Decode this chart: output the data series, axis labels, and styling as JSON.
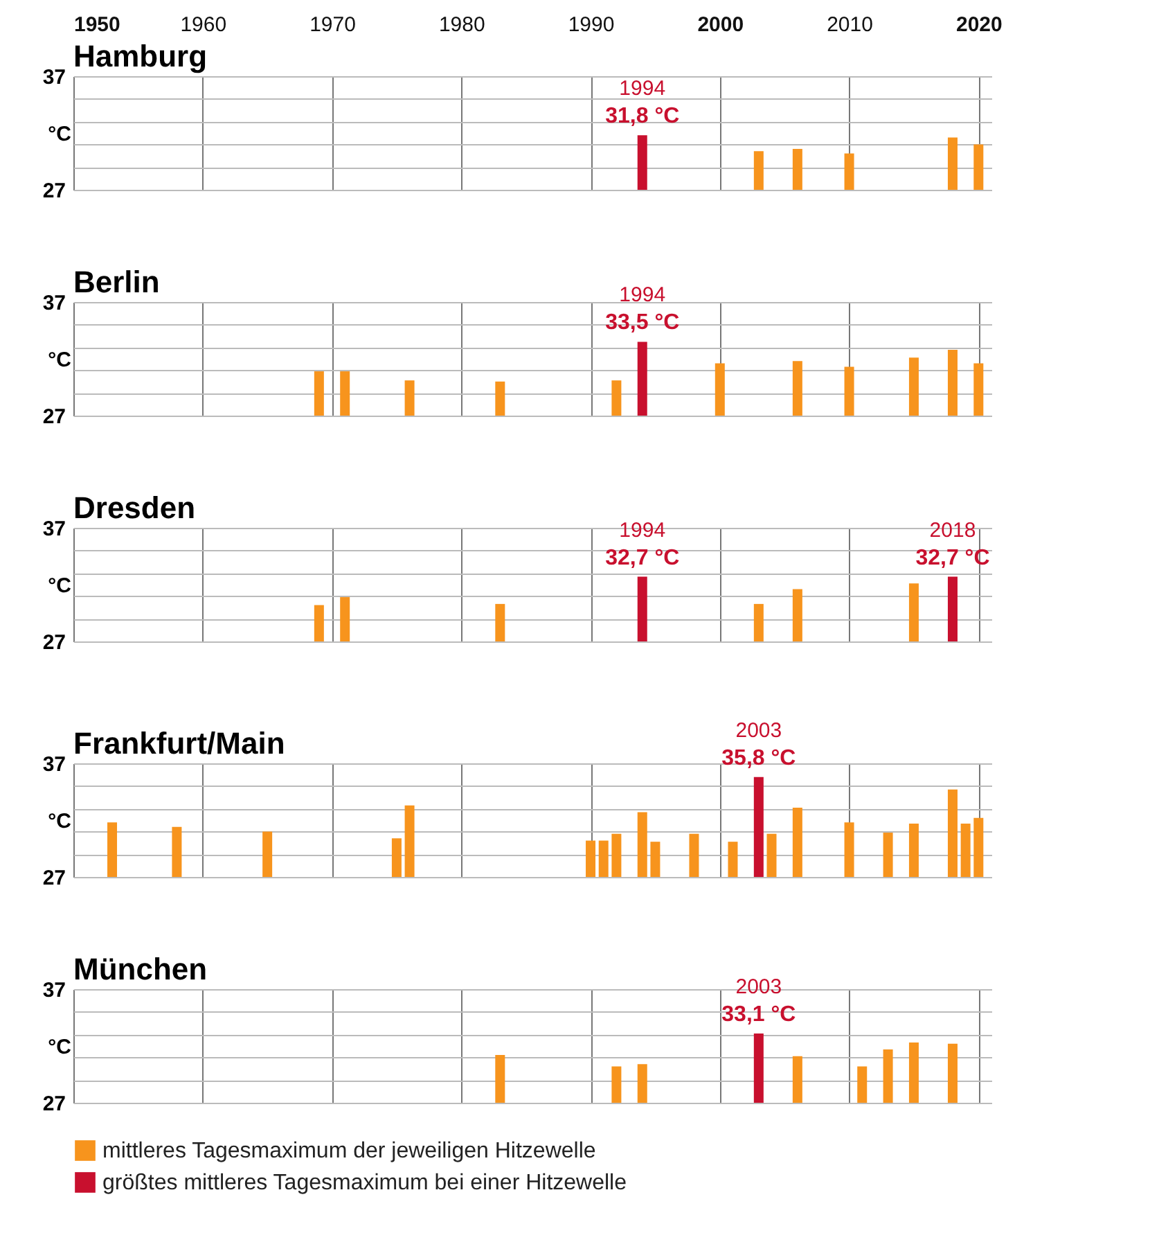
{
  "chart_data": [
    {
      "type": "bar",
      "title": "Hamburg",
      "xlim": [
        1950,
        2021
      ],
      "xticks": [
        1950,
        1960,
        1970,
        1980,
        1990,
        2000,
        2010,
        2020
      ],
      "ylim": [
        27,
        37
      ],
      "yticks": [
        27,
        {
          "value": 29,
          "label": null
        },
        {
          "value": 31,
          "label": null
        },
        {
          "value": 33,
          "label": null
        },
        {
          "value": 35,
          "label": null
        },
        37
      ],
      "ylabel": "°C",
      "grid": true,
      "series": [
        {
          "color": "#f7941d",
          "x": [
            2003,
            2006,
            2010,
            2018,
            2020
          ],
          "values": [
            30.4,
            30.6,
            30.2,
            31.6,
            31.0
          ]
        },
        {
          "color": "#c8102e",
          "x": [
            1994
          ],
          "values": [
            31.8
          ],
          "value_labels": [
            "31,8 °C"
          ]
        }
      ],
      "annotations": [
        {
          "text": "1994",
          "x": 1994,
          "y": 31.8
        }
      ]
    },
    {
      "type": "bar",
      "title": "Berlin",
      "xlim": [
        1950,
        2021
      ],
      "xticks": [
        1950,
        1960,
        1970,
        1980,
        1990,
        2000,
        2010,
        2020
      ],
      "ylim": [
        27,
        37
      ],
      "yticks": [
        27,
        {
          "value": 29,
          "label": null
        },
        {
          "value": 31,
          "label": null
        },
        {
          "value": 33,
          "label": null
        },
        {
          "value": 35,
          "label": null
        },
        37
      ],
      "ylabel": "°C",
      "grid": true,
      "tick_labels": "y",
      "series": [
        {
          "color": "#f7941d",
          "x": [
            1969,
            1971,
            1976,
            1983,
            1992,
            2000,
            2006,
            2010,
            2015,
            2018,
            2020
          ],
          "values": [
            30.9,
            30.9,
            30.1,
            30.0,
            30.1,
            31.6,
            31.8,
            31.3,
            32.1,
            32.8,
            31.6
          ]
        },
        {
          "color": "#c8102e",
          "x": [
            1994
          ],
          "values": [
            33.5
          ],
          "value_labels": [
            "33,5 °C"
          ]
        }
      ],
      "annotations": [
        {
          "text": "1994",
          "x": 1994,
          "y": 33.5
        }
      ]
    },
    {
      "type": "bar",
      "title": "Dresden",
      "xlim": [
        1950,
        2021
      ],
      "xticks": [
        1950,
        1960,
        1970,
        1980,
        1990,
        2000,
        2010,
        2020
      ],
      "ylim": [
        27,
        37
      ],
      "yticks": [
        27,
        {
          "value": 29,
          "label": null
        },
        {
          "value": 31,
          "label": null
        },
        {
          "value": 33,
          "label": null
        },
        {
          "value": 35,
          "label": null
        },
        37
      ],
      "ylabel": "°C",
      "grid": true,
      "tick_labels": "y",
      "series": [
        {
          "color": "#f7941d",
          "x": [
            1969,
            1971,
            1983,
            2003,
            2006,
            2015
          ],
          "values": [
            30.2,
            30.9,
            30.3,
            30.3,
            31.6,
            32.1
          ]
        },
        {
          "color": "#c8102e",
          "x": [
            1994,
            2018
          ],
          "values": [
            32.7,
            32.7
          ],
          "value_labels": [
            "32,7 °C",
            "32,7 °C"
          ]
        }
      ],
      "annotations": [
        {
          "text": "1994",
          "x": 1994,
          "y": 32.7
        },
        {
          "text": "2018",
          "x": 2018,
          "y": 32.7
        }
      ]
    },
    {
      "type": "bar",
      "title": "Frankfurt/Main",
      "xlim": [
        1950,
        2021
      ],
      "xticks": [
        1950,
        1960,
        1970,
        1980,
        1990,
        2000,
        2010,
        2020
      ],
      "ylim": [
        27,
        37
      ],
      "yticks": [
        27,
        {
          "value": 29,
          "label": null
        },
        {
          "value": 31,
          "label": null
        },
        {
          "value": 33,
          "label": null
        },
        {
          "value": 35,
          "label": null
        },
        37
      ],
      "ylabel": "°C",
      "grid": true,
      "tick_labels": "y",
      "series": [
        {
          "color": "#f7941d",
          "x": [
            1953,
            1958,
            1965,
            1975,
            1976,
            1990,
            1991,
            1992,
            1994,
            1995,
            1998,
            2001,
            2004,
            2006,
            2010,
            2013,
            2015,
            2018,
            2019,
            2020
          ],
          "values": [
            31.8,
            31.4,
            31.0,
            30.4,
            33.3,
            30.2,
            30.2,
            30.8,
            32.7,
            30.1,
            30.8,
            30.1,
            30.8,
            33.1,
            31.8,
            30.9,
            31.7,
            34.7,
            31.7,
            32.2
          ]
        },
        {
          "color": "#c8102e",
          "x": [
            2003
          ],
          "values": [
            35.8
          ],
          "value_labels": [
            "35,8 °C"
          ]
        }
      ],
      "annotations": [
        {
          "text": "2003",
          "x": 2003,
          "y": 35.8
        }
      ]
    },
    {
      "type": "bar",
      "title": "München",
      "xlim": [
        1950,
        2021
      ],
      "xticks": [
        1950,
        1960,
        1970,
        1980,
        1990,
        2000,
        2010,
        2020
      ],
      "ylim": [
        27,
        37
      ],
      "yticks": [
        27,
        {
          "value": 29,
          "label": null
        },
        {
          "value": 31,
          "label": null
        },
        {
          "value": 33,
          "label": null
        },
        {
          "value": 35,
          "label": null
        },
        37
      ],
      "ylabel": "°C",
      "grid": true,
      "tick_labels": "y",
      "legend": "bottom",
      "series": [
        {
          "name": "mittleres Tagesmaximum der jeweiligen Hitzewelle",
          "color": "#f7941d",
          "x": [
            1983,
            1992,
            1994,
            2006,
            2011,
            2013,
            2015,
            2018
          ],
          "values": [
            31.2,
            30.2,
            30.4,
            31.1,
            30.2,
            31.7,
            32.3,
            32.2
          ]
        },
        {
          "name": "größtes mittleres Tagesmaximum bei einer Hitzewelle",
          "color": "#c8102e",
          "x": [
            2003
          ],
          "values": [
            33.1
          ],
          "value_labels": [
            "33,1 °C"
          ]
        }
      ],
      "annotations": [
        {
          "text": "2003",
          "x": 2003,
          "y": 33.1
        }
      ]
    }
  ]
}
